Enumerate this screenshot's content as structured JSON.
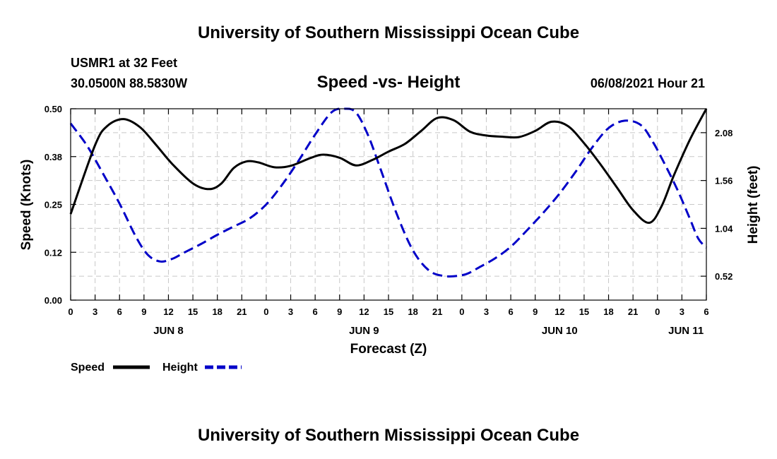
{
  "chart_data": {
    "type": "line",
    "title": "University of Southern Mississippi Ocean Cube",
    "footer_title": "University of Southern Mississippi Ocean Cube",
    "station": "USMR1 at 32 Feet",
    "location": "30.0500N  88.5830W",
    "subtitle": "Speed -vs- Height",
    "datetime": "06/08/2021 Hour 21",
    "xlabel": "Forecast (Z)",
    "ylabel_left": "Speed (Knots)",
    "ylabel_right": "Height (feet)",
    "xlim": [
      0,
      78
    ],
    "ylim_left": [
      0,
      0.5
    ],
    "ylim_right": [
      0.26,
      2.34
    ],
    "x_ticks": [
      0,
      3,
      6,
      9,
      12,
      15,
      18,
      21,
      24,
      27,
      30,
      33,
      36,
      39,
      42,
      45,
      48,
      51,
      54,
      57,
      60,
      63,
      66,
      69,
      72,
      75,
      78
    ],
    "x_tick_labels": [
      "0",
      "3",
      "6",
      "9",
      "12",
      "15",
      "18",
      "21",
      "0",
      "3",
      "6",
      "9",
      "12",
      "15",
      "18",
      "21",
      "0",
      "3",
      "6",
      "9",
      "12",
      "15",
      "18",
      "21",
      "0",
      "3",
      "6"
    ],
    "y_ticks_left": [
      0,
      0.125,
      0.25,
      0.375,
      0.5
    ],
    "y_tick_labels_left": [
      "0.00",
      "0.12",
      "0.25",
      "0.38",
      "0.50"
    ],
    "y_ticks_right": [
      0.52,
      1.04,
      1.56,
      2.08
    ],
    "y_tick_labels_right": [
      "0.52",
      "1.04",
      "1.56",
      "2.08"
    ],
    "day_labels": [
      {
        "x": 12,
        "label": "JUN 8"
      },
      {
        "x": 36,
        "label": "JUN 9"
      },
      {
        "x": 60,
        "label": "JUN 10"
      },
      {
        "x": 75.5,
        "label": "JUN 11"
      }
    ],
    "series": [
      {
        "name": "Speed",
        "axis": "left",
        "color": "#000000",
        "style": "solid",
        "x": [
          0,
          3,
          4.5,
          6.5,
          8.5,
          10.5,
          12.5,
          15,
          17,
          18.5,
          20,
          21.5,
          23,
          25,
          27,
          29.5,
          31,
          33,
          35,
          37,
          39,
          41,
          43,
          45,
          47,
          49,
          51,
          53,
          55,
          57,
          59,
          61,
          63,
          65,
          67,
          69,
          71,
          72.5,
          74,
          76,
          78
        ],
        "y": [
          0.225,
          0.405,
          0.455,
          0.473,
          0.452,
          0.405,
          0.355,
          0.305,
          0.29,
          0.305,
          0.345,
          0.362,
          0.36,
          0.347,
          0.351,
          0.372,
          0.38,
          0.372,
          0.352,
          0.366,
          0.388,
          0.408,
          0.442,
          0.476,
          0.47,
          0.44,
          0.43,
          0.427,
          0.426,
          0.442,
          0.466,
          0.455,
          0.41,
          0.355,
          0.295,
          0.235,
          0.202,
          0.245,
          0.325,
          0.42,
          0.5
        ]
      },
      {
        "name": "Height",
        "axis": "right",
        "color": "#0000c8",
        "style": "dashed",
        "x": [
          0,
          2,
          4,
          6,
          8,
          9.5,
          11,
          12.5,
          14,
          16,
          18,
          20,
          22,
          24,
          26,
          28,
          30,
          32,
          33.5,
          35,
          36.5,
          38,
          40,
          42,
          44,
          46,
          48,
          49,
          50,
          52,
          54,
          56,
          58,
          60,
          62,
          64,
          66,
          68,
          70,
          71.5,
          73,
          74.5,
          76,
          77,
          78
        ],
        "y": [
          2.18,
          1.94,
          1.63,
          1.31,
          0.95,
          0.75,
          0.68,
          0.71,
          0.78,
          0.87,
          0.97,
          1.06,
          1.15,
          1.3,
          1.52,
          1.78,
          2.06,
          2.3,
          2.36,
          2.3,
          2.05,
          1.69,
          1.2,
          0.8,
          0.58,
          0.52,
          0.53,
          0.56,
          0.61,
          0.71,
          0.84,
          1.02,
          1.21,
          1.42,
          1.66,
          1.92,
          2.13,
          2.21,
          2.16,
          1.97,
          1.72,
          1.45,
          1.14,
          0.93,
          0.83
        ]
      }
    ],
    "legend": [
      {
        "label": "Speed",
        "color": "#000000",
        "style": "solid"
      },
      {
        "label": "Height",
        "color": "#0000c8",
        "style": "dashed"
      }
    ]
  }
}
